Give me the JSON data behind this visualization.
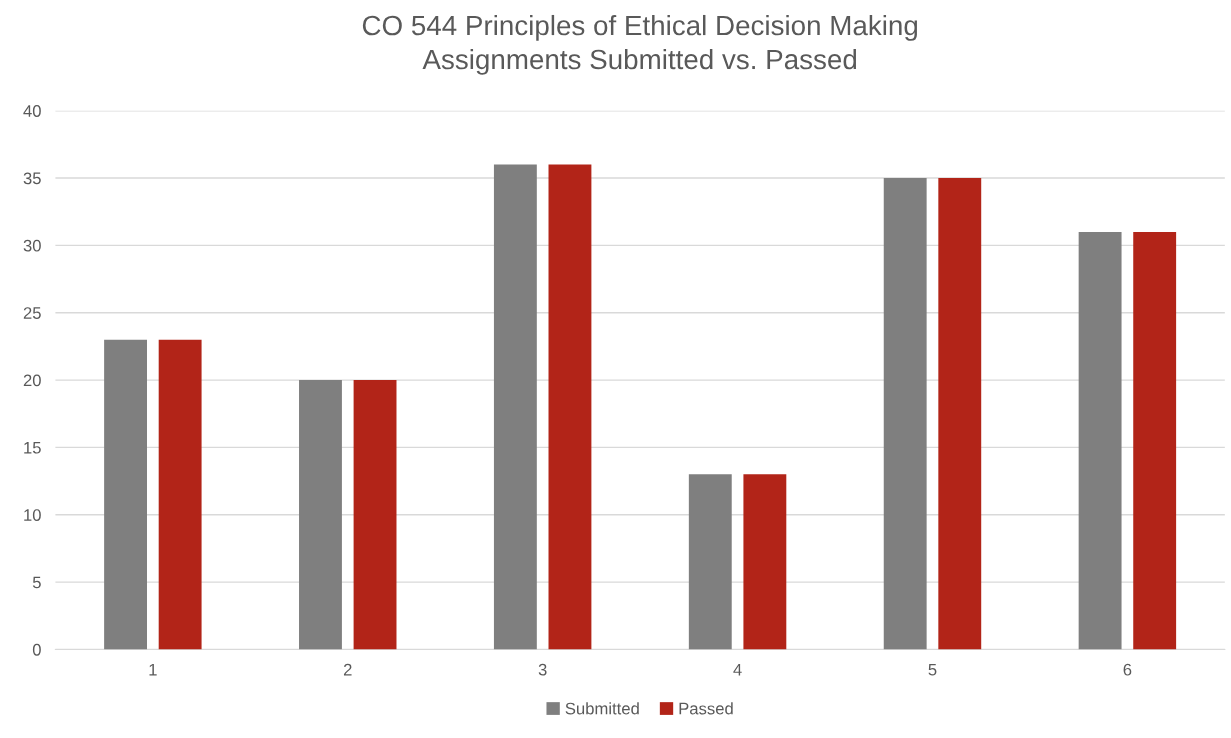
{
  "chart_data": {
    "type": "bar",
    "title": "CO 544 Principles of Ethical Decision Making\nAssignments Submitted vs. Passed",
    "categories": [
      "1",
      "2",
      "3",
      "4",
      "5",
      "6"
    ],
    "series": [
      {
        "name": "Submitted",
        "color": "#7f7f7f",
        "values": [
          23,
          20,
          36,
          13,
          35,
          31
        ]
      },
      {
        "name": "Passed",
        "color": "#b22418",
        "values": [
          23,
          20,
          36,
          13,
          35,
          31
        ]
      }
    ],
    "ylim": [
      0,
      40
    ],
    "yticks": [
      0,
      5,
      10,
      15,
      20,
      25,
      30,
      35,
      40
    ],
    "grid": "y",
    "legend": "bottom"
  }
}
